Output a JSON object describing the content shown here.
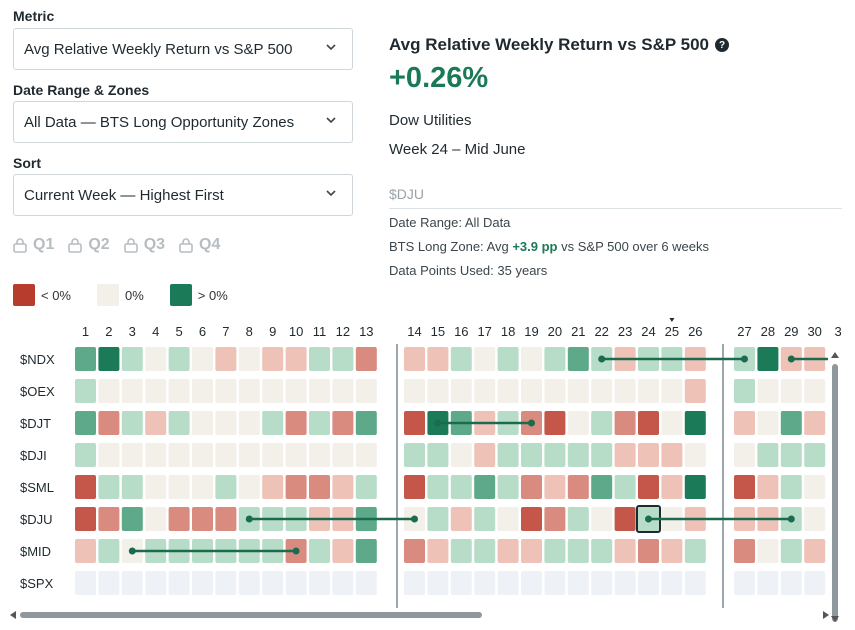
{
  "controls": {
    "metric_label": "Metric",
    "metric_value": "Avg Relative Weekly Return vs S&P 500",
    "range_label": "Date Range & Zones",
    "range_value": "All Data — BTS Long Opportunity Zones",
    "sort_label": "Sort",
    "sort_value": "Current Week — Highest First",
    "quarters": [
      "Q1",
      "Q2",
      "Q3",
      "Q4"
    ]
  },
  "legend": {
    "neg": "< 0%",
    "zero": "0%",
    "pos": "> 0%"
  },
  "colors": {
    "neg": "#b83c2e",
    "zero": "#f3efe9",
    "pos": "#1b7a57",
    "empty": "#eef2f7"
  },
  "detail": {
    "title": "Avg Relative Weekly Return vs S&P 500",
    "value": "+0.26%",
    "name": "Dow Utilities",
    "week": "Week 24 – Mid June",
    "ticker": "$DJU",
    "date_range": "Date Range: All Data",
    "zone_prefix": "BTS Long Zone: Avg ",
    "zone_value": "+3.9 pp",
    "zone_suffix": " vs S&P 500 over 6 weeks",
    "data_points": "Data Points Used: 35 years"
  },
  "grid": {
    "weeks": [
      "1",
      "2",
      "3",
      "4",
      "5",
      "6",
      "7",
      "8",
      "9",
      "10",
      "11",
      "12",
      "13",
      "14",
      "15",
      "16",
      "17",
      "18",
      "19",
      "20",
      "21",
      "22",
      "23",
      "24",
      "25",
      "26",
      "27",
      "28",
      "29",
      "30",
      "3"
    ],
    "current_week": 24,
    "rows": [
      {
        "label": "$NDX",
        "cells": [
          2,
          3,
          1,
          0,
          1,
          0,
          -1,
          0,
          -1,
          -1,
          1,
          1,
          -2,
          -1,
          -1,
          1,
          0,
          1,
          0,
          1,
          2,
          1,
          -1,
          1,
          1,
          -1,
          1,
          3,
          -1,
          -1
        ]
      },
      {
        "label": "$OEX",
        "cells": [
          1,
          0,
          0,
          0,
          0,
          0,
          0,
          0,
          0,
          0,
          0,
          0,
          0,
          0,
          0,
          0,
          0,
          0,
          0,
          0,
          0,
          0,
          0,
          0,
          0,
          -1,
          1,
          0,
          0,
          0
        ]
      },
      {
        "label": "$DJT",
        "cells": [
          2,
          -2,
          1,
          -1,
          1,
          0,
          0,
          0,
          1,
          -2,
          1,
          -2,
          2,
          -3,
          3,
          2,
          -1,
          1,
          -2,
          -3,
          0,
          1,
          -2,
          -3,
          0,
          3,
          -1,
          0,
          2,
          -1
        ]
      },
      {
        "label": "$DJI",
        "cells": [
          1,
          0,
          0,
          0,
          0,
          0,
          0,
          0,
          0,
          0,
          0,
          0,
          0,
          1,
          1,
          0,
          -1,
          1,
          1,
          1,
          1,
          1,
          -1,
          -1,
          -1,
          0,
          0,
          1,
          1,
          1
        ]
      },
      {
        "label": "$SML",
        "cells": [
          -3,
          1,
          1,
          0,
          0,
          0,
          1,
          0,
          -1,
          -2,
          -2,
          -1,
          1,
          -3,
          1,
          1,
          2,
          1,
          -2,
          -1,
          -2,
          2,
          1,
          -3,
          -1,
          3,
          -3,
          -1,
          1,
          0
        ]
      },
      {
        "label": "$DJU",
        "cells": [
          -3,
          -2,
          2,
          0,
          -2,
          -2,
          -2,
          1,
          1,
          1,
          -1,
          -1,
          2,
          0,
          1,
          -1,
          1,
          0,
          -3,
          -2,
          1,
          0,
          -3,
          1,
          0,
          -1,
          -1,
          -1,
          1,
          0
        ]
      },
      {
        "label": "$MID",
        "cells": [
          -1,
          1,
          0,
          1,
          1,
          1,
          1,
          1,
          1,
          -2,
          1,
          -1,
          2,
          -2,
          -1,
          1,
          1,
          -1,
          -1,
          1,
          1,
          1,
          -1,
          -2,
          -1,
          1,
          -2,
          0,
          1,
          -1
        ]
      },
      {
        "label": "$SPX",
        "cells": [
          9,
          9,
          9,
          9,
          9,
          9,
          9,
          9,
          9,
          9,
          9,
          9,
          9,
          9,
          9,
          9,
          9,
          9,
          9,
          9,
          9,
          9,
          9,
          9,
          9,
          9,
          9,
          9,
          9,
          9
        ]
      }
    ],
    "zones": [
      {
        "row": 0,
        "from": 22,
        "to": 27
      },
      {
        "row": 0,
        "from": 29,
        "to": 31
      },
      {
        "row": 2,
        "from": 15,
        "to": 19
      },
      {
        "row": 5,
        "from": 8,
        "to": 14
      },
      {
        "row": 5,
        "from": 24,
        "to": 29
      },
      {
        "row": 6,
        "from": 3,
        "to": 10
      }
    ],
    "selected": {
      "row": 5,
      "week": 24
    }
  }
}
